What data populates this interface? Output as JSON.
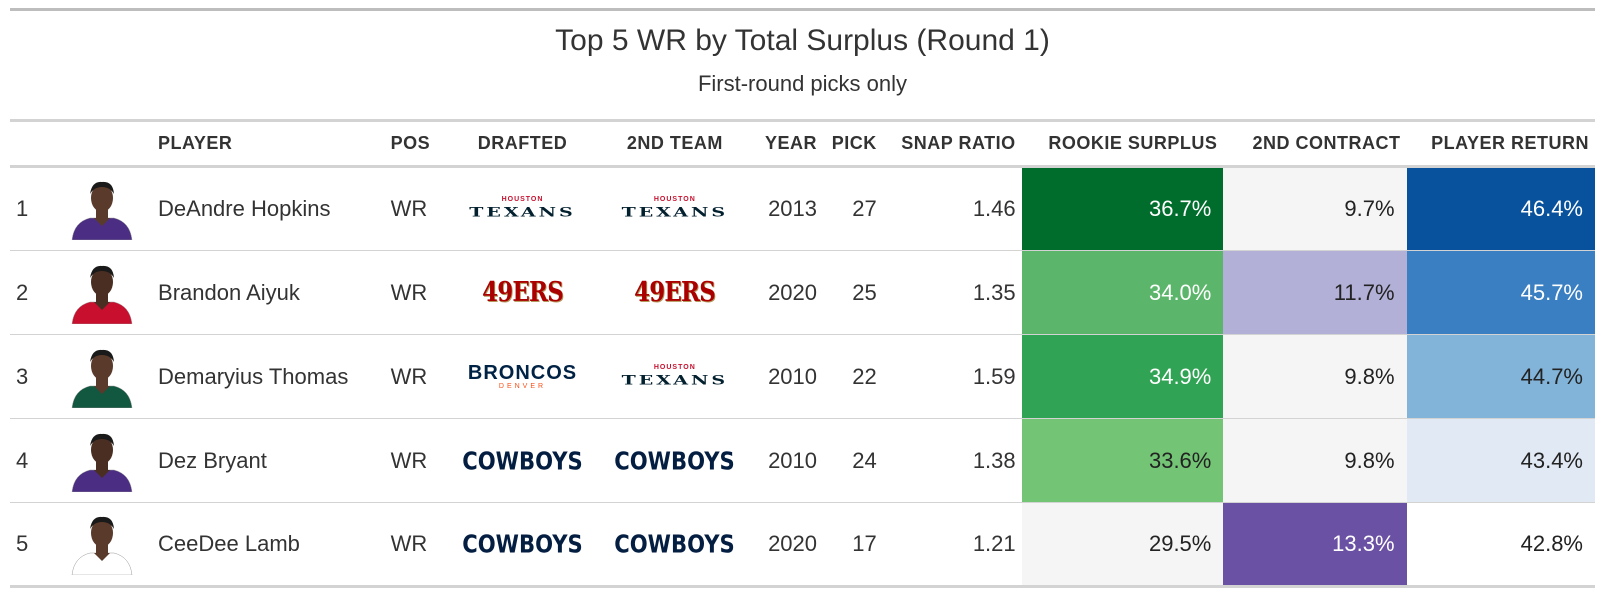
{
  "title": "Top 5 WR by Total Surplus (Round 1)",
  "subtitle": "First-round picks only",
  "columns": {
    "rank": "",
    "headshot": "",
    "player": "PLAYER",
    "pos": "POS",
    "drafted": "DRAFTED",
    "second_team": "2ND TEAM",
    "year": "YEAR",
    "pick": "PICK",
    "snap_ratio": "SNAP RATIO",
    "rookie_surplus": "ROOKIE SURPLUS",
    "second_contract": "2ND CONTRACT",
    "player_return": "PLAYER RETURN"
  },
  "logos": {
    "texans": {
      "small": "HOUSTON",
      "big": "TEXANS"
    },
    "49ers": {
      "big": "49ERS"
    },
    "broncos": {
      "big": "BRONCOS",
      "small": "DENVER"
    },
    "cowboys": {
      "big": "COWBOYS"
    }
  },
  "rows": [
    {
      "rank": "1",
      "player": "DeAndre Hopkins",
      "pos": "WR",
      "drafted": "texans",
      "second_team": "texans",
      "year": "2013",
      "pick": "27",
      "snap_ratio": "1.46",
      "rookie_surplus": "36.7%",
      "second_contract": "9.7%",
      "player_return": "46.4%",
      "rookie_surplus_bg": "#006d2c",
      "rookie_surplus_fg": "#ffffff",
      "second_contract_bg": "#f5f5f5",
      "second_contract_fg": "#222222",
      "player_return_bg": "#08519c",
      "player_return_fg": "#ffffff",
      "jersey": "#4b2e83",
      "skin": "#5a3a2a"
    },
    {
      "rank": "2",
      "player": "Brandon Aiyuk",
      "pos": "WR",
      "drafted": "49ers",
      "second_team": "49ers",
      "year": "2020",
      "pick": "25",
      "snap_ratio": "1.35",
      "rookie_surplus": "34.0%",
      "second_contract": "11.7%",
      "player_return": "45.7%",
      "rookie_surplus_bg": "#5bb56a",
      "rookie_surplus_fg": "#ffffff",
      "second_contract_bg": "#b3b0d8",
      "second_contract_fg": "#222222",
      "player_return_bg": "#3a7fc1",
      "player_return_fg": "#ffffff",
      "jersey": "#c8102e",
      "skin": "#4a2e22"
    },
    {
      "rank": "3",
      "player": "Demaryius Thomas",
      "pos": "WR",
      "drafted": "broncos",
      "second_team": "texans",
      "year": "2010",
      "pick": "22",
      "snap_ratio": "1.59",
      "rookie_surplus": "34.9%",
      "second_contract": "9.8%",
      "player_return": "44.7%",
      "rookie_surplus_bg": "#31a354",
      "rookie_surplus_fg": "#ffffff",
      "second_contract_bg": "#f5f5f5",
      "second_contract_fg": "#222222",
      "player_return_bg": "#82b4d9",
      "player_return_fg": "#222222",
      "jersey": "#125740",
      "skin": "#5a3a2a"
    },
    {
      "rank": "4",
      "player": "Dez Bryant",
      "pos": "WR",
      "drafted": "cowboys",
      "second_team": "cowboys",
      "year": "2010",
      "pick": "24",
      "snap_ratio": "1.38",
      "rookie_surplus": "33.6%",
      "second_contract": "9.8%",
      "player_return": "43.4%",
      "rookie_surplus_bg": "#74c476",
      "rookie_surplus_fg": "#222222",
      "second_contract_bg": "#f5f5f5",
      "second_contract_fg": "#222222",
      "player_return_bg": "#e1e9f4",
      "player_return_fg": "#222222",
      "jersey": "#4b2e83",
      "skin": "#4a2e22"
    },
    {
      "rank": "5",
      "player": "CeeDee Lamb",
      "pos": "WR",
      "drafted": "cowboys",
      "second_team": "cowboys",
      "year": "2020",
      "pick": "17",
      "snap_ratio": "1.21",
      "rookie_surplus": "29.5%",
      "second_contract": "13.3%",
      "player_return": "42.8%",
      "rookie_surplus_bg": "#f5f5f5",
      "rookie_surplus_fg": "#222222",
      "second_contract_bg": "#6a51a3",
      "second_contract_fg": "#ffffff",
      "player_return_bg": "#ffffff",
      "player_return_fg": "#222222",
      "jersey": "#ffffff",
      "skin": "#5a3a2a"
    }
  ]
}
